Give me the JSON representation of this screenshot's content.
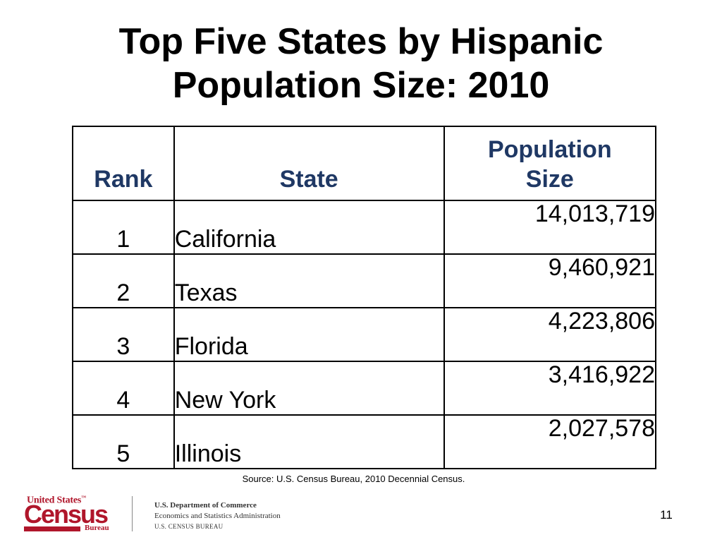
{
  "title": {
    "line1": "Top Five States by Hispanic",
    "line2": "Population Size: 2010"
  },
  "table": {
    "headers": {
      "rank": "Rank",
      "state": "State",
      "population_line1": "Population",
      "population_line2": "Size"
    },
    "rows": [
      {
        "rank": "1",
        "state": "California",
        "population": "14,013,719"
      },
      {
        "rank": "2",
        "state": "Texas",
        "population": "9,460,921"
      },
      {
        "rank": "3",
        "state": "Florida",
        "population": "4,223,806"
      },
      {
        "rank": "4",
        "state": "New York",
        "population": "3,416,922"
      },
      {
        "rank": "5",
        "state": "Illinois",
        "population": "2,027,578"
      }
    ]
  },
  "source": "Source: U.S. Census Bureau, 2010 Decennial Census.",
  "logo": {
    "top": "United States",
    "tm": "™",
    "main": "Census",
    "sub": "Bureau"
  },
  "department": {
    "line1": "U.S. Department of Commerce",
    "line2": "Economics and Statistics Administration",
    "line3": "U.S. CENSUS BUREAU"
  },
  "page_number": "11",
  "colors": {
    "header_text": "#1f3864",
    "census_red": "#b0162b"
  }
}
